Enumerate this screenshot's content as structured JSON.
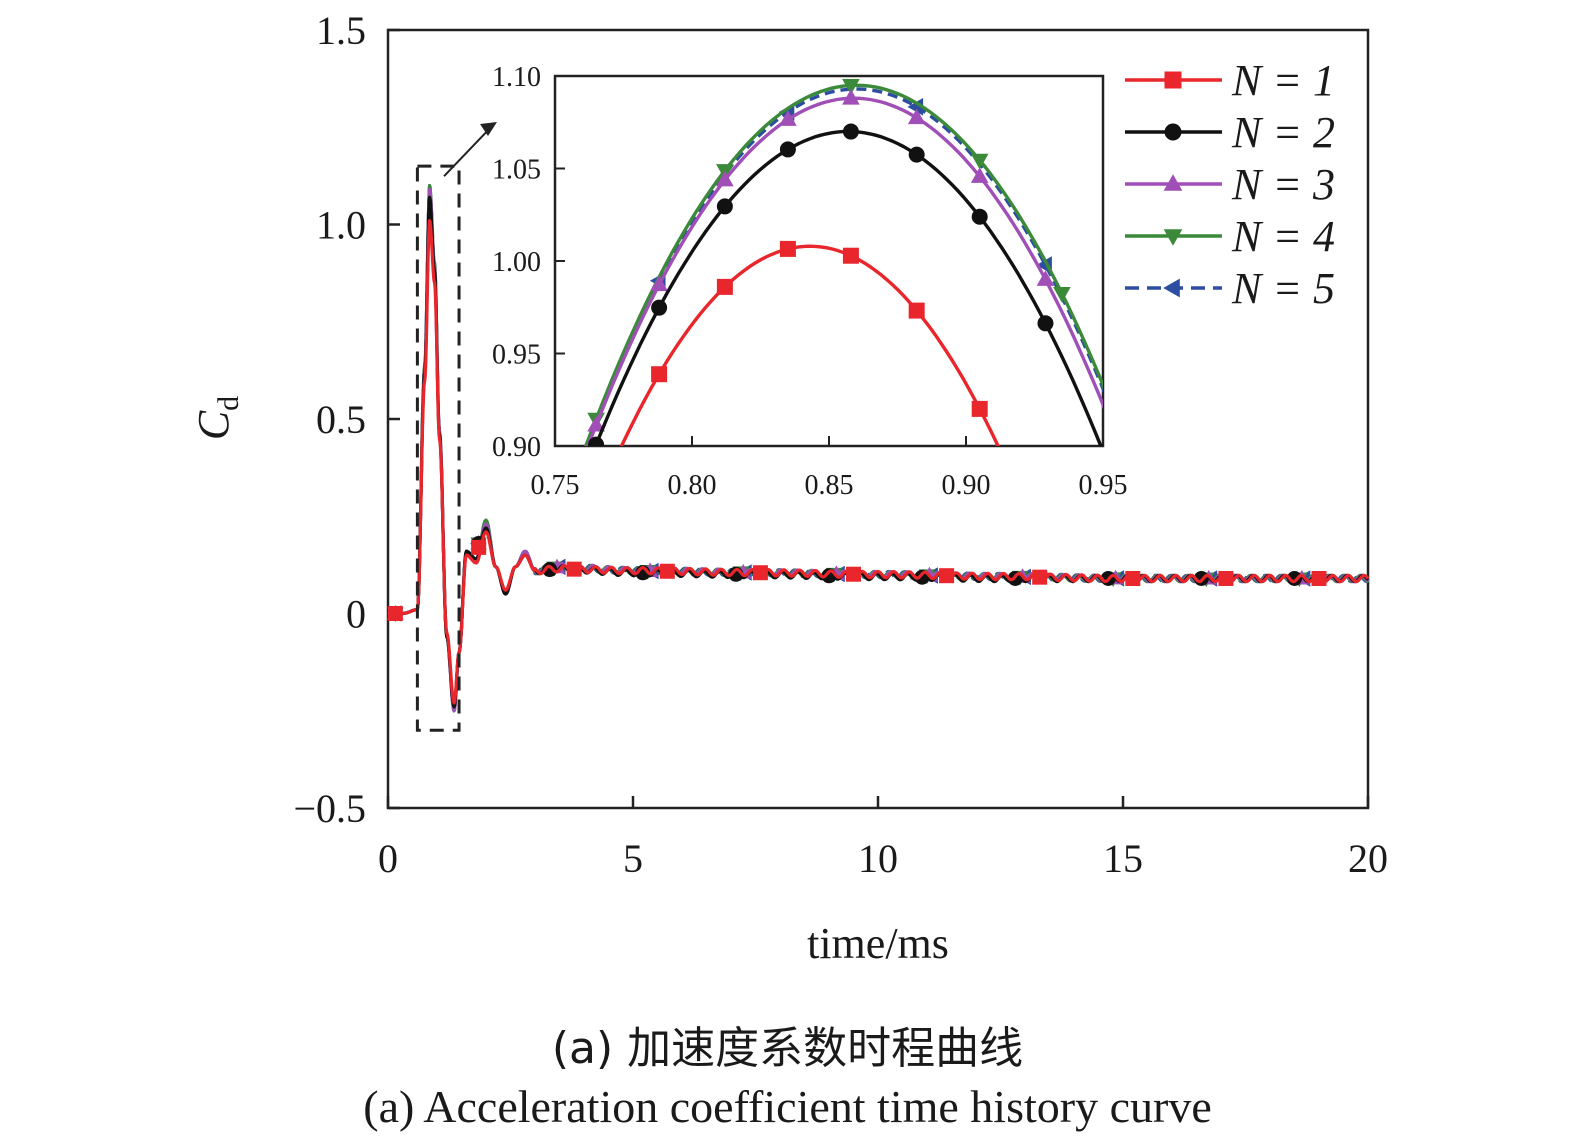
{
  "chart_data": [
    {
      "type": "line",
      "title": "",
      "xlabel": "time/ms",
      "ylabel": "C",
      "ylabel_subscript": "d",
      "xlim": [
        0,
        20
      ],
      "ylim": [
        -0.5,
        1.5
      ],
      "xticks": [
        0,
        5,
        10,
        15,
        20
      ],
      "xtick_labels": [
        "0",
        "5",
        "10",
        "15",
        "20"
      ],
      "yticks": [
        -0.5,
        0,
        0.5,
        1.0,
        1.5
      ],
      "ytick_labels": [
        "−0.5",
        "0",
        "0.5",
        "1.0",
        "1.5"
      ],
      "grid": false,
      "legend_position": "top-right",
      "series": [
        {
          "name": "N = 1",
          "color": "#e8262c",
          "marker": "square",
          "dash": "solid",
          "peak": 1.01,
          "x": [
            0,
            0.3,
            0.6,
            0.75,
            0.85,
            0.95,
            1.05,
            1.2,
            1.35,
            1.45,
            1.6,
            1.8,
            2.0,
            2.2,
            2.4,
            2.6,
            2.8,
            3.0,
            3.5,
            5,
            7.5,
            10,
            12.5,
            15,
            17.5,
            20
          ],
          "y": [
            0,
            0,
            0.01,
            0.6,
            1.01,
            0.85,
            0.45,
            -0.05,
            -0.23,
            -0.1,
            0.15,
            0.13,
            0.21,
            0.12,
            0.06,
            0.12,
            0.15,
            0.11,
            0.115,
            0.11,
            0.105,
            0.1,
            0.095,
            0.09,
            0.09,
            0.09
          ]
        },
        {
          "name": "N = 2",
          "color": "#111111",
          "marker": "circle",
          "dash": "solid",
          "peak": 1.07,
          "x": [
            0,
            0.3,
            0.6,
            0.75,
            0.85,
            0.95,
            1.05,
            1.2,
            1.35,
            1.45,
            1.6,
            1.8,
            2.0,
            2.2,
            2.4,
            2.6,
            2.8,
            3.0,
            3.5,
            5,
            7.5,
            10,
            12.5,
            15,
            17.5,
            20
          ],
          "y": [
            0,
            0,
            0.01,
            0.62,
            1.07,
            0.88,
            0.46,
            -0.06,
            -0.24,
            -0.1,
            0.16,
            0.14,
            0.22,
            0.12,
            0.05,
            0.12,
            0.15,
            0.11,
            0.115,
            0.105,
            0.1,
            0.095,
            0.09,
            0.09,
            0.09,
            0.09
          ]
        },
        {
          "name": "N = 3",
          "color": "#a04fb6",
          "marker": "triangle-up",
          "dash": "solid",
          "peak": 1.09,
          "x": [
            0,
            0.3,
            0.6,
            0.75,
            0.85,
            0.95,
            1.05,
            1.2,
            1.35,
            1.45,
            1.6,
            1.8,
            2.0,
            2.2,
            2.4,
            2.6,
            2.8,
            3.0,
            3.5,
            5,
            7.5,
            10,
            12.5,
            15,
            17.5,
            20
          ],
          "y": [
            0,
            0,
            0.01,
            0.63,
            1.09,
            0.89,
            0.47,
            -0.06,
            -0.25,
            -0.1,
            0.16,
            0.14,
            0.23,
            0.12,
            0.05,
            0.12,
            0.16,
            0.11,
            0.12,
            0.11,
            0.105,
            0.1,
            0.095,
            0.09,
            0.09,
            0.09
          ]
        },
        {
          "name": "N = 4",
          "color": "#3a8a3a",
          "marker": "triangle-down",
          "dash": "solid",
          "peak": 1.1,
          "x": [
            0,
            0.3,
            0.6,
            0.75,
            0.85,
            0.95,
            1.05,
            1.2,
            1.35,
            1.45,
            1.6,
            1.8,
            2.0,
            2.2,
            2.4,
            2.6,
            2.8,
            3.0,
            3.5,
            5,
            7.5,
            10,
            12.5,
            15,
            17.5,
            20
          ],
          "y": [
            0,
            0,
            0.01,
            0.64,
            1.1,
            0.9,
            0.47,
            -0.06,
            -0.25,
            -0.1,
            0.16,
            0.14,
            0.24,
            0.12,
            0.05,
            0.12,
            0.16,
            0.11,
            0.12,
            0.11,
            0.105,
            0.1,
            0.095,
            0.09,
            0.09,
            0.09
          ]
        },
        {
          "name": "N = 5",
          "color": "#2d4da0",
          "marker": "triangle-left",
          "dash": "dashed",
          "peak": 1.1,
          "x": [
            0,
            0.3,
            0.6,
            0.75,
            0.85,
            0.95,
            1.05,
            1.2,
            1.35,
            1.45,
            1.6,
            1.8,
            2.0,
            2.2,
            2.4,
            2.6,
            2.8,
            3.0,
            3.5,
            5,
            7.5,
            10,
            12.5,
            15,
            17.5,
            20
          ],
          "y": [
            0,
            0,
            0.01,
            0.64,
            1.1,
            0.9,
            0.47,
            -0.06,
            -0.25,
            -0.1,
            0.16,
            0.14,
            0.24,
            0.12,
            0.05,
            0.12,
            0.16,
            0.11,
            0.12,
            0.11,
            0.105,
            0.1,
            0.095,
            0.09,
            0.09,
            0.09
          ]
        }
      ],
      "zoom_box": {
        "x": [
          0.6,
          1.45
        ],
        "y": [
          -0.3,
          1.15
        ]
      }
    },
    {
      "type": "line",
      "title": "",
      "xlim": [
        0.75,
        0.95
      ],
      "ylim": [
        0.9,
        1.1
      ],
      "xticks": [
        0.75,
        0.8,
        0.85,
        0.9,
        0.95
      ],
      "xtick_labels": [
        "0.75",
        "0.80",
        "0.85",
        "0.90",
        "0.95"
      ],
      "yticks": [
        0.9,
        0.95,
        1.0,
        1.05,
        1.1
      ],
      "ytick_labels": [
        "0.90",
        "0.95",
        "1.00",
        "1.05",
        "1.10"
      ],
      "series": [
        {
          "name": "N = 1",
          "peak_x": 0.843,
          "peak_y": 1.008,
          "width": 0.0935,
          "marker_x": [
            0.765,
            0.788,
            0.812,
            0.835,
            0.858,
            0.882,
            0.905
          ]
        },
        {
          "name": "N = 2",
          "peak_x": 0.857,
          "peak_y": 1.07,
          "width": 0.1,
          "marker_x": [
            0.765,
            0.788,
            0.812,
            0.835,
            0.858,
            0.882,
            0.905,
            0.929
          ]
        },
        {
          "name": "N = 3",
          "peak_x": 0.859,
          "peak_y": 1.088,
          "width": 0.1,
          "marker_x": [
            0.765,
            0.788,
            0.812,
            0.835,
            0.858,
            0.882,
            0.905,
            0.929
          ]
        },
        {
          "name": "N = 4",
          "peak_x": 0.86,
          "peak_y": 1.095,
          "width": 0.1,
          "marker_x": [
            0.765,
            0.812,
            0.858,
            0.905,
            0.935
          ]
        },
        {
          "name": "N = 5",
          "peak_x": 0.86,
          "peak_y": 1.093,
          "width": 0.1,
          "marker_x": [
            0.788,
            0.835,
            0.882,
            0.929
          ]
        }
      ]
    }
  ],
  "caption": {
    "cn": "(a) 加速度系数时程曲线",
    "en": "(a) Acceleration coefficient time history curve"
  }
}
